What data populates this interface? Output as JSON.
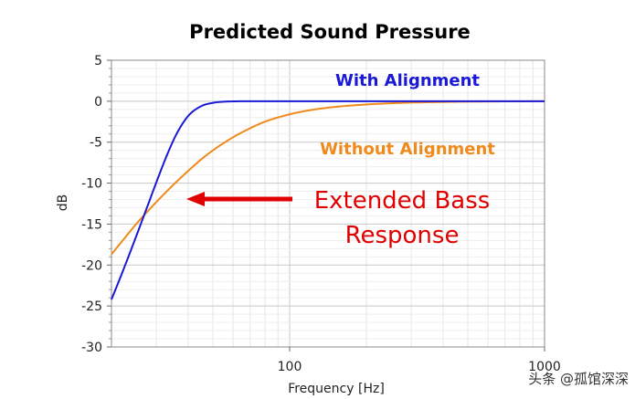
{
  "chart_data": {
    "type": "line",
    "title": "Predicted Sound Pressure",
    "xlabel": "Frequency [Hz]",
    "ylabel": "dB",
    "xscale": "log",
    "xlim": [
      20,
      1000
    ],
    "ylim": [
      -30,
      5
    ],
    "x_ticks": [
      100,
      1000
    ],
    "x_tick_labels": [
      "100",
      "1000"
    ],
    "y_ticks": [
      5,
      0,
      -5,
      -10,
      -15,
      -20,
      -25,
      -30
    ],
    "y_tick_labels": [
      "5",
      "0",
      "-5",
      "-10",
      "-15",
      "-20",
      "-25",
      "-30"
    ],
    "grid": true,
    "series": [
      {
        "name": "With Alignment",
        "color": "#1a1ad6",
        "x": [
          20,
          22,
          25,
          28,
          30,
          33,
          36,
          40,
          45,
          50,
          55,
          60,
          70,
          80,
          100,
          150,
          200,
          300,
          500,
          1000
        ],
        "y": [
          -24.2,
          -21.0,
          -16.5,
          -12.4,
          -9.9,
          -6.6,
          -4.0,
          -1.8,
          -0.6,
          -0.2,
          -0.06,
          -0.02,
          0,
          0,
          0,
          0,
          0,
          0,
          0,
          0
        ]
      },
      {
        "name": "Without Alignment",
        "color": "#f08a1c",
        "x": [
          20,
          22,
          25,
          28,
          30,
          35,
          40,
          45,
          50,
          60,
          70,
          80,
          100,
          120,
          150,
          200,
          250,
          300,
          400,
          500,
          700,
          1000
        ],
        "y": [
          -18.7,
          -17.1,
          -15.0,
          -13.3,
          -12.3,
          -10.2,
          -8.5,
          -7.1,
          -6.0,
          -4.4,
          -3.3,
          -2.5,
          -1.6,
          -1.1,
          -0.7,
          -0.4,
          -0.25,
          -0.17,
          -0.09,
          -0.05,
          -0.02,
          0
        ]
      }
    ],
    "annotations": [
      {
        "text_line1": "Extended Bass",
        "text_line2": "Response",
        "color": "#e00000"
      }
    ]
  },
  "legend": {
    "with_label": "With Alignment",
    "without_label": "Without Alignment"
  },
  "watermark": "头条 @孤馆深深"
}
